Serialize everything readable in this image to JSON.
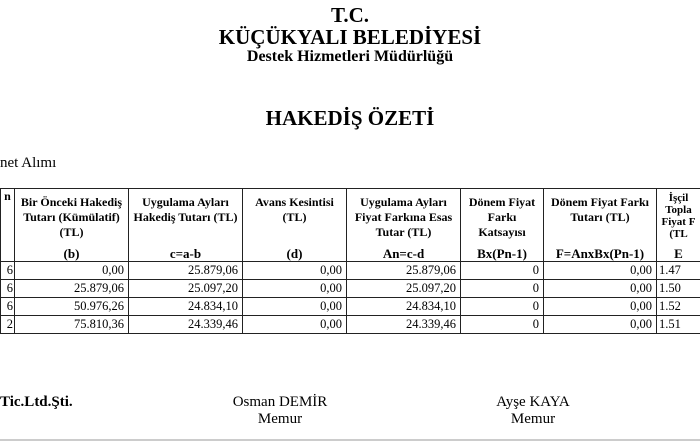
{
  "header": {
    "line1": "T.C.",
    "line2": "KÜÇÜKYALI BELEDİYESİ",
    "line3": "Destek Hizmetleri Müdürlüğü",
    "title": "HAKEDİŞ ÖZETİ"
  },
  "subject": "net Alımı",
  "table": {
    "columns": [
      {
        "label": "n",
        "formula": ""
      },
      {
        "label": "Bir Önceki Hakediş Tutarı (Kümülatif) (TL)",
        "formula": "(b)"
      },
      {
        "label": "Uygulama Ayları Hakediş Tutarı (TL)",
        "formula": "c=a-b"
      },
      {
        "label": "Avans Kesintisi (TL)",
        "formula": "(d)"
      },
      {
        "label": "Uygulama Ayları Fiyat Farkına Esas Tutar (TL)",
        "formula": "An=c-d"
      },
      {
        "label": "Dönem Fiyat Farkı Katsayısı",
        "formula": "Bx(Pn-1)"
      },
      {
        "label": "Dönem Fiyat Farkı Tutarı (TL)",
        "formula": "F=AnxBx(Pn-1)"
      },
      {
        "label": "İşçil Topla Fiyat F (TL",
        "formula": "E"
      }
    ],
    "rows": [
      [
        "6",
        "0,00",
        "25.879,06",
        "0,00",
        "25.879,06",
        "0",
        "0,00",
        "1.47"
      ],
      [
        "6",
        "25.879,06",
        "25.097,20",
        "0,00",
        "25.097,20",
        "0",
        "0,00",
        "1.50"
      ],
      [
        "6",
        "50.976,26",
        "24.834,10",
        "0,00",
        "24.834,10",
        "0",
        "0,00",
        "1.52"
      ],
      [
        "2",
        "75.810,36",
        "24.339,46",
        "0,00",
        "24.339,46",
        "0",
        "0,00",
        "1.51"
      ]
    ]
  },
  "signatures": [
    {
      "name": "Tic.Ltd.Şti.",
      "title": ""
    },
    {
      "name": "Osman DEMİR",
      "title": "Memur"
    },
    {
      "name": "Ayşe KAYA",
      "title": "Memur"
    }
  ]
}
